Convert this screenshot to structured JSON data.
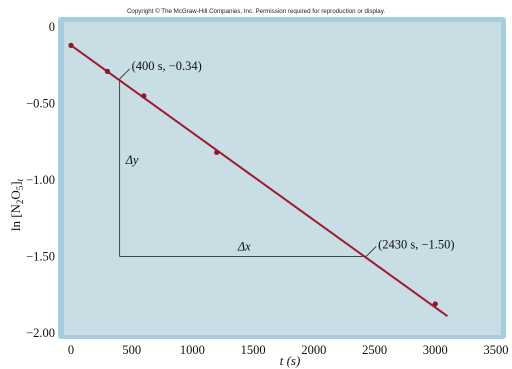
{
  "copyright": "Copyright © The McGraw-Hill Companies, Inc. Permission required for reproduction or display.",
  "colors": {
    "plot_background": "#c8dde4",
    "frame": "#a6cede",
    "line": "#9e1b32",
    "point": "#8a1a2a",
    "guide": "#444444"
  },
  "chart_data": {
    "type": "scatter",
    "xlabel": "t (s)",
    "ylabel": "ln [N2O5]t",
    "xlim": [
      0,
      3500
    ],
    "ylim": [
      -2.0,
      0
    ],
    "xticks": [
      0,
      500,
      1000,
      1500,
      2000,
      2500,
      3000,
      3500
    ],
    "yticks": [
      0,
      -0.5,
      -1.0,
      -1.5,
      -2.0
    ],
    "ytick_labels": [
      "0",
      "−0.50",
      "−1.00",
      "−1.50",
      "−2.00"
    ],
    "grid": false,
    "points": [
      {
        "x": 0,
        "y": -0.12
      },
      {
        "x": 300,
        "y": -0.29
      },
      {
        "x": 600,
        "y": -0.45
      },
      {
        "x": 1200,
        "y": -0.82
      },
      {
        "x": 3000,
        "y": -1.81
      }
    ],
    "fit_line": {
      "x": [
        0,
        3100
      ],
      "y": [
        -0.12,
        -1.89
      ]
    },
    "slope_guides": {
      "start": {
        "x": 400,
        "y": -0.34
      },
      "end": {
        "x": 2430,
        "y": -1.5
      }
    },
    "annotations": {
      "point1": "(400 s, −0.34)",
      "point2": "(2430 s, −1.50)",
      "delta_y": "Δy",
      "delta_x": "Δx"
    }
  }
}
